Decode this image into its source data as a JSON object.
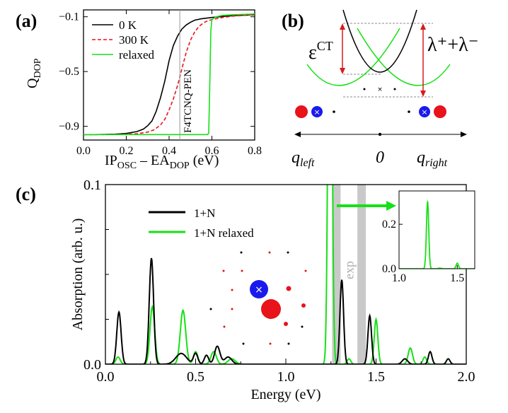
{
  "figure": {
    "colors": {
      "black": "#000000",
      "red": "#e8131b",
      "green": "#16e016",
      "blue": "#1a1aee",
      "gray": "#c9c9c9"
    }
  },
  "chart_data": [
    {
      "panel": "(a)",
      "type": "line",
      "xlabel_main": "IP",
      "xlabel_sub1": "OSC",
      "xlabel_mid": " – EA",
      "xlabel_sub2": "DOP",
      "xlabel_unit": " (eV)",
      "ylabel_main": "Q",
      "ylabel_sub": "DOP",
      "xlim": [
        0.0,
        0.8
      ],
      "ylim": [
        -1.0,
        -0.05
      ],
      "xticks": [
        0.0,
        0.2,
        0.4,
        0.6,
        0.8
      ],
      "xtick_labels": [
        "0.0",
        "0.2",
        "0.4",
        "0.6",
        "0.8"
      ],
      "yticks": [
        -0.1,
        -0.5,
        -0.9
      ],
      "ytick_labels": [
        "−0.1",
        "−0.5",
        "−0.9"
      ],
      "annotation": {
        "text": "F4TCNQ-PEN",
        "x": 0.45
      },
      "series": [
        {
          "name": "0 K",
          "style": "solid",
          "color": "#000000",
          "x": [
            0.0,
            0.05,
            0.1,
            0.15,
            0.2,
            0.25,
            0.28,
            0.3,
            0.32,
            0.34,
            0.36,
            0.38,
            0.4,
            0.42,
            0.44,
            0.46,
            0.48,
            0.5,
            0.52,
            0.55,
            0.6,
            0.65,
            0.7,
            0.75,
            0.8
          ],
          "y": [
            -0.96,
            -0.96,
            -0.959,
            -0.957,
            -0.952,
            -0.938,
            -0.92,
            -0.895,
            -0.86,
            -0.79,
            -0.69,
            -0.57,
            -0.42,
            -0.31,
            -0.24,
            -0.19,
            -0.16,
            -0.14,
            -0.125,
            -0.115,
            -0.105,
            -0.098,
            -0.092,
            -0.088,
            -0.085
          ]
        },
        {
          "name": "300 K",
          "style": "dashed",
          "color": "#e8131b",
          "x": [
            0.0,
            0.1,
            0.2,
            0.25,
            0.3,
            0.33,
            0.36,
            0.38,
            0.4,
            0.42,
            0.44,
            0.46,
            0.48,
            0.5,
            0.52,
            0.54,
            0.56,
            0.58,
            0.6,
            0.65,
            0.7,
            0.8
          ],
          "y": [
            -0.96,
            -0.96,
            -0.958,
            -0.954,
            -0.942,
            -0.925,
            -0.89,
            -0.85,
            -0.78,
            -0.7,
            -0.6,
            -0.48,
            -0.36,
            -0.27,
            -0.21,
            -0.17,
            -0.145,
            -0.13,
            -0.12,
            -0.105,
            -0.095,
            -0.085
          ]
        },
        {
          "name": "relaxed",
          "style": "solid",
          "color": "#16e016",
          "x": [
            0.0,
            0.3,
            0.58,
            0.585,
            0.59,
            0.595,
            0.6,
            0.62,
            0.65,
            0.7,
            0.8
          ],
          "y": [
            -0.96,
            -0.96,
            -0.96,
            -0.95,
            -0.6,
            -0.2,
            -0.12,
            -0.1,
            -0.09,
            -0.085,
            -0.08
          ]
        }
      ]
    },
    {
      "panel": "(b)",
      "type": "diagram",
      "epsilon_label": "ε",
      "epsilon_sup": "CT",
      "lambda_label": "λ⁺+λ⁻",
      "axis_left_label": "q",
      "axis_left_sub": "left",
      "axis_zero_label": "0",
      "axis_right_label": "q",
      "axis_right_sub": "right"
    },
    {
      "panel": "(c)",
      "type": "line",
      "xlabel": "Energy (eV)",
      "ylabel": "Absorption (arb. u.)",
      "xlim": [
        0.0,
        2.0
      ],
      "ylim": [
        0.0,
        0.1
      ],
      "xticks": [
        0.0,
        0.5,
        1.0,
        1.5,
        2.0
      ],
      "xtick_labels": [
        "0.0",
        "0.5",
        "1.0",
        "1.5",
        "2.0"
      ],
      "yticks": [
        0.0,
        0.1
      ],
      "ytick_labels": [
        "0.0",
        "0.1"
      ],
      "exp_label": "exp",
      "exp_bands": [
        1.28,
        1.42
      ],
      "series": [
        {
          "name": "1+N",
          "color": "#000000",
          "peaks": [
            [
              0.075,
              0.029,
              0.012
            ],
            [
              0.255,
              0.059,
              0.012
            ],
            [
              0.42,
              0.006,
              0.03
            ],
            [
              0.5,
              0.006,
              0.012
            ],
            [
              0.56,
              0.005,
              0.012
            ],
            [
              0.62,
              0.01,
              0.015
            ],
            [
              0.68,
              0.004,
              0.02
            ],
            [
              1.31,
              0.047,
              0.01
            ],
            [
              1.465,
              0.027,
              0.01
            ],
            [
              1.66,
              0.003,
              0.015
            ],
            [
              1.8,
              0.007,
              0.01
            ],
            [
              1.9,
              0.003,
              0.01
            ]
          ]
        },
        {
          "name": "1+N relaxed",
          "color": "#16e016",
          "peaks": [
            [
              0.07,
              0.004,
              0.012
            ],
            [
              0.26,
              0.032,
              0.013
            ],
            [
              0.43,
              0.03,
              0.015
            ],
            [
              0.5,
              0.007,
              0.012
            ],
            [
              0.6,
              0.007,
              0.015
            ],
            [
              0.7,
              0.003,
              0.02
            ],
            [
              1.245,
              0.3,
              0.01
            ],
            [
              1.35,
              0.003,
              0.01
            ],
            [
              1.5,
              0.025,
              0.01
            ],
            [
              1.69,
              0.009,
              0.012
            ],
            [
              1.77,
              0.004,
              0.01
            ]
          ]
        }
      ],
      "inset": {
        "xlim": [
          1.0,
          1.65
        ],
        "ylim": [
          0.0,
          0.35
        ],
        "xticks": [
          1.0,
          1.5
        ],
        "xtick_labels": [
          "1.0",
          "1.5"
        ],
        "yticks": [
          0.0,
          0.2
        ],
        "ytick_labels": [
          "0.0",
          "0.2"
        ]
      }
    }
  ]
}
